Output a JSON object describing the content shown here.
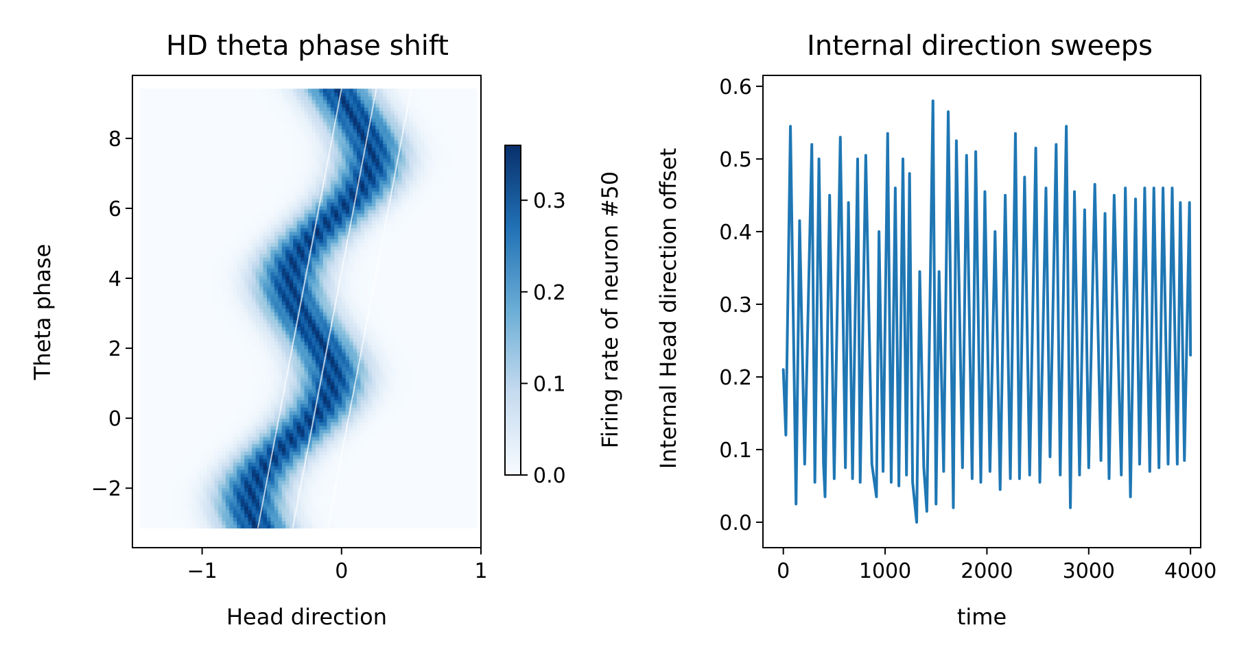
{
  "chart_data": [
    {
      "type": "heatmap",
      "title": "HD theta phase shift",
      "xlabel": "Head direction",
      "ylabel": "Theta phase",
      "xlim": [
        -1.5,
        1.0
      ],
      "ylim": [
        -3.7,
        9.8
      ],
      "xticks": [
        -1,
        0,
        1
      ],
      "yticks": [
        -2,
        0,
        2,
        4,
        6,
        8
      ],
      "xtick_labels": [
        "−1",
        "0",
        "1"
      ],
      "ytick_labels": [
        "−2",
        "0",
        "2",
        "4",
        "6",
        "8"
      ],
      "colormap": "Blues",
      "colorbar": {
        "label": "Firing rate of neuron #50",
        "range": [
          0.0,
          0.36
        ],
        "ticks": [
          0.0,
          0.1,
          0.2,
          0.3
        ],
        "tick_labels": [
          "0.0",
          "0.1",
          "0.2",
          "0.3"
        ]
      },
      "data_extent": {
        "x": [
          -1.45,
          0.97
        ],
        "y": [
          -3.14,
          9.42
        ]
      },
      "structure": {
        "diagonal_slope_x_per_phase": 0.045,
        "peak_center_hd": -0.2,
        "phase_sweep_amplitude_hd": 0.22,
        "theta_period": 6.283,
        "peak_rate": 0.36
      }
    },
    {
      "type": "line",
      "title": "Internal direction sweeps",
      "xlabel": "time",
      "ylabel": "Internal Head direction offset",
      "xlim": [
        -200,
        4100
      ],
      "ylim": [
        -0.035,
        0.615
      ],
      "xticks": [
        0,
        1000,
        2000,
        3000,
        4000
      ],
      "yticks": [
        0.0,
        0.1,
        0.2,
        0.3,
        0.4,
        0.5,
        0.6
      ],
      "xtick_labels": [
        "0",
        "1000",
        "2000",
        "3000",
        "4000"
      ],
      "ytick_labels": [
        "0.0",
        "0.1",
        "0.2",
        "0.3",
        "0.4",
        "0.5",
        "0.6"
      ],
      "series": [
        {
          "color": "#1f77b4",
          "x": [
            0,
            25,
            70,
            125,
            160,
            210,
            280,
            310,
            350,
            395,
            410,
            455,
            500,
            560,
            610,
            640,
            680,
            730,
            755,
            810,
            870,
            915,
            940,
            980,
            1025,
            1060,
            1100,
            1135,
            1175,
            1210,
            1240,
            1270,
            1310,
            1340,
            1380,
            1410,
            1470,
            1500,
            1530,
            1575,
            1620,
            1670,
            1700,
            1760,
            1800,
            1855,
            1890,
            1940,
            1980,
            2030,
            2080,
            2130,
            2180,
            2230,
            2280,
            2320,
            2370,
            2420,
            2480,
            2520,
            2580,
            2620,
            2680,
            2720,
            2780,
            2820,
            2860,
            2910,
            2960,
            3000,
            3060,
            3120,
            3160,
            3200,
            3250,
            3320,
            3360,
            3410,
            3460,
            3500,
            3550,
            3600,
            3640,
            3690,
            3730,
            3780,
            3820,
            3870,
            3900,
            3940,
            3990,
            4000
          ],
          "y": [
            0.21,
            0.12,
            0.545,
            0.025,
            0.415,
            0.08,
            0.52,
            0.055,
            0.5,
            0.08,
            0.035,
            0.45,
            0.06,
            0.53,
            0.075,
            0.44,
            0.06,
            0.5,
            0.055,
            0.505,
            0.08,
            0.035,
            0.4,
            0.07,
            0.535,
            0.055,
            0.46,
            0.05,
            0.5,
            0.065,
            0.48,
            0.055,
            0.0,
            0.345,
            0.075,
            0.015,
            0.58,
            0.025,
            0.345,
            0.07,
            0.565,
            0.02,
            0.525,
            0.075,
            0.505,
            0.06,
            0.51,
            0.055,
            0.455,
            0.07,
            0.4,
            0.045,
            0.45,
            0.06,
            0.535,
            0.06,
            0.475,
            0.065,
            0.515,
            0.055,
            0.46,
            0.09,
            0.52,
            0.065,
            0.545,
            0.02,
            0.455,
            0.065,
            0.43,
            0.075,
            0.465,
            0.085,
            0.425,
            0.06,
            0.45,
            0.065,
            0.46,
            0.035,
            0.445,
            0.08,
            0.46,
            0.07,
            0.46,
            0.075,
            0.46,
            0.08,
            0.46,
            0.08,
            0.44,
            0.085,
            0.44,
            0.23
          ]
        }
      ]
    }
  ]
}
